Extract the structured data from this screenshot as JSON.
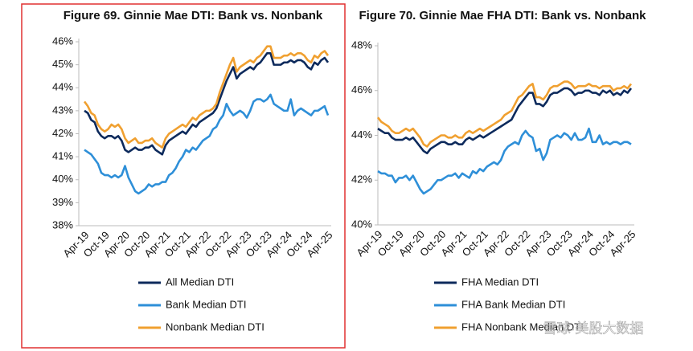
{
  "chart_data": [
    {
      "type": "line",
      "title": "Figure 69. Ginnie Mae DTI: Bank vs. Nonbank",
      "categories": [
        "Apr-19",
        null,
        null,
        null,
        null,
        null,
        "Oct-19",
        null,
        null,
        null,
        null,
        null,
        "Apr-20",
        null,
        null,
        null,
        null,
        null,
        "Oct-20",
        null,
        null,
        null,
        null,
        null,
        "Apr-21",
        null,
        null,
        null,
        null,
        null,
        "Oct-21",
        null,
        null,
        null,
        null,
        null,
        "Apr-22",
        null,
        null,
        null,
        null,
        null,
        "Oct-22",
        null,
        null,
        null,
        null,
        null,
        "Apr-23",
        null,
        null,
        null,
        null,
        null,
        "Oct-23",
        null,
        null,
        null,
        null,
        null,
        "Apr-24",
        null,
        null,
        null,
        null,
        null,
        "Oct-24",
        null,
        null,
        null,
        null,
        null,
        "Apr-25"
      ],
      "ylim": [
        38,
        46
      ],
      "yticks": [
        {
          "value": 38,
          "label": "38%"
        },
        {
          "value": 39,
          "label": "39%"
        },
        {
          "value": 40,
          "label": "40%"
        },
        {
          "value": 41,
          "label": "41%"
        },
        {
          "value": 42,
          "label": "42%"
        },
        {
          "value": 43,
          "label": "43%"
        },
        {
          "value": 44,
          "label": "44%"
        },
        {
          "value": 45,
          "label": "45%"
        },
        {
          "value": 46,
          "label": "46%"
        }
      ],
      "series": [
        {
          "name": "All Median DTI",
          "color": "#0d2a5c",
          "values": [
            43.0,
            42.9,
            42.6,
            42.5,
            42.1,
            41.9,
            41.8,
            41.9,
            41.9,
            41.8,
            41.9,
            41.7,
            41.3,
            41.2,
            41.3,
            41.4,
            41.3,
            41.3,
            41.4,
            41.4,
            41.5,
            41.3,
            41.2,
            41.1,
            41.5,
            41.7,
            41.8,
            41.9,
            42.0,
            42.1,
            42.0,
            42.2,
            42.4,
            42.3,
            42.5,
            42.6,
            42.7,
            42.8,
            42.9,
            43.1,
            43.5,
            43.9,
            44.3,
            44.6,
            44.9,
            44.4,
            44.6,
            44.7,
            44.8,
            44.9,
            44.8,
            45.0,
            45.1,
            45.3,
            45.5,
            45.5,
            45.0,
            45.0,
            45.0,
            45.1,
            45.1,
            45.2,
            45.1,
            45.2,
            45.2,
            45.1,
            44.9,
            44.8,
            45.1,
            45.0,
            45.2,
            45.3,
            45.1
          ]
        },
        {
          "name": "Bank Median DTI",
          "color": "#2e8fd8",
          "values": [
            41.3,
            41.2,
            41.1,
            40.9,
            40.7,
            40.3,
            40.2,
            40.2,
            40.1,
            40.2,
            40.1,
            40.2,
            40.6,
            40.1,
            39.8,
            39.5,
            39.4,
            39.5,
            39.6,
            39.8,
            39.7,
            39.8,
            39.8,
            39.9,
            39.9,
            40.2,
            40.3,
            40.5,
            40.8,
            41.0,
            41.3,
            41.2,
            41.4,
            41.3,
            41.5,
            41.7,
            41.8,
            41.9,
            42.2,
            42.3,
            42.6,
            42.8,
            43.3,
            43.0,
            42.8,
            42.9,
            43.0,
            42.9,
            42.7,
            43.0,
            43.4,
            43.5,
            43.5,
            43.4,
            43.5,
            43.7,
            43.3,
            43.2,
            43.1,
            43.0,
            43.0,
            43.5,
            42.8,
            43.0,
            43.1,
            43.0,
            42.9,
            42.8,
            43.0,
            43.0,
            43.1,
            43.2,
            42.8
          ]
        },
        {
          "name": "Nonbank Median DTI",
          "color": "#f0a030",
          "values": [
            43.4,
            43.2,
            42.9,
            42.8,
            42.4,
            42.2,
            42.1,
            42.2,
            42.4,
            42.3,
            42.4,
            42.2,
            41.8,
            41.6,
            41.7,
            41.8,
            41.6,
            41.6,
            41.7,
            41.7,
            41.8,
            41.6,
            41.5,
            41.4,
            41.8,
            42.0,
            42.1,
            42.2,
            42.3,
            42.4,
            42.3,
            42.5,
            42.7,
            42.6,
            42.8,
            42.9,
            43.0,
            43.0,
            43.1,
            43.3,
            43.8,
            44.2,
            44.6,
            45.0,
            45.3,
            44.7,
            44.9,
            45.0,
            45.1,
            45.2,
            45.1,
            45.3,
            45.4,
            45.6,
            45.8,
            45.8,
            45.3,
            45.3,
            45.3,
            45.4,
            45.4,
            45.5,
            45.4,
            45.5,
            45.5,
            45.4,
            45.2,
            45.1,
            45.4,
            45.3,
            45.5,
            45.6,
            45.4
          ]
        }
      ]
    },
    {
      "type": "line",
      "title": "Figure 70. Ginnie Mae FHA DTI: Bank vs. Nonbank",
      "categories": [
        "Apr-19",
        null,
        null,
        null,
        null,
        null,
        "Oct-19",
        null,
        null,
        null,
        null,
        null,
        "Apr-20",
        null,
        null,
        null,
        null,
        null,
        "Oct-20",
        null,
        null,
        null,
        null,
        null,
        "Apr-21",
        null,
        null,
        null,
        null,
        null,
        "Oct-21",
        null,
        null,
        null,
        null,
        null,
        "Apr-22",
        null,
        null,
        null,
        null,
        null,
        "Oct-22",
        null,
        null,
        null,
        null,
        null,
        "Apr-23",
        null,
        null,
        null,
        null,
        null,
        "Oct-23",
        null,
        null,
        null,
        null,
        null,
        "Apr-24",
        null,
        null,
        null,
        null,
        null,
        "Oct-24",
        null,
        null,
        null,
        null,
        null,
        "Apr-25"
      ],
      "ylim": [
        40,
        48
      ],
      "yticks": [
        {
          "value": 40,
          "label": "40%"
        },
        {
          "value": 42,
          "label": "42%"
        },
        {
          "value": 44,
          "label": "44%"
        },
        {
          "value": 46,
          "label": "46%"
        },
        {
          "value": 48,
          "label": "48%"
        }
      ],
      "series": [
        {
          "name": "FHA Median DTI",
          "color": "#0d2a5c",
          "values": [
            44.3,
            44.2,
            44.1,
            44.1,
            43.9,
            43.8,
            43.8,
            43.8,
            43.9,
            43.8,
            43.9,
            43.7,
            43.5,
            43.3,
            43.2,
            43.4,
            43.5,
            43.6,
            43.7,
            43.7,
            43.6,
            43.6,
            43.7,
            43.6,
            43.6,
            43.8,
            43.9,
            43.8,
            43.9,
            44.0,
            43.9,
            44.0,
            44.1,
            44.2,
            44.3,
            44.4,
            44.5,
            44.6,
            44.7,
            45.0,
            45.3,
            45.5,
            45.7,
            45.9,
            45.9,
            45.4,
            45.4,
            45.3,
            45.5,
            45.8,
            45.9,
            45.9,
            46.0,
            46.1,
            46.1,
            46.0,
            45.8,
            45.9,
            45.9,
            46.0,
            46.0,
            45.9,
            45.9,
            45.8,
            46.0,
            45.9,
            46.0,
            45.8,
            45.9,
            45.8,
            46.0,
            45.9,
            46.1
          ]
        },
        {
          "name": "FHA Bank Median DTI",
          "color": "#2e8fd8",
          "values": [
            42.4,
            42.3,
            42.3,
            42.2,
            42.2,
            41.9,
            42.1,
            42.1,
            42.2,
            42.0,
            42.2,
            41.9,
            41.6,
            41.4,
            41.5,
            41.6,
            41.8,
            42.0,
            42.0,
            42.1,
            42.2,
            42.2,
            42.3,
            42.1,
            42.3,
            42.2,
            42.1,
            42.4,
            42.3,
            42.5,
            42.4,
            42.6,
            42.7,
            42.8,
            42.7,
            42.9,
            43.3,
            43.5,
            43.6,
            43.7,
            43.6,
            44.0,
            44.2,
            44.0,
            43.9,
            43.3,
            43.4,
            42.9,
            43.2,
            43.8,
            43.9,
            44.0,
            43.9,
            44.1,
            44.0,
            43.8,
            44.1,
            43.8,
            43.8,
            43.9,
            44.3,
            43.7,
            43.7,
            44.0,
            43.6,
            43.7,
            43.6,
            43.7,
            43.7,
            43.6,
            43.7,
            43.7,
            43.6
          ]
        },
        {
          "name": "FHA Nonbank Median DTI",
          "color": "#f0a030",
          "values": [
            44.8,
            44.6,
            44.5,
            44.4,
            44.2,
            44.1,
            44.1,
            44.2,
            44.3,
            44.2,
            44.3,
            44.1,
            43.9,
            43.6,
            43.5,
            43.7,
            43.8,
            43.9,
            44.0,
            44.0,
            43.9,
            43.9,
            44.0,
            43.9,
            43.9,
            44.1,
            44.2,
            44.1,
            44.2,
            44.3,
            44.2,
            44.3,
            44.4,
            44.5,
            44.6,
            44.7,
            44.9,
            45.0,
            45.1,
            45.4,
            45.7,
            45.8,
            46.0,
            46.2,
            46.3,
            45.7,
            45.7,
            45.6,
            45.8,
            46.1,
            46.2,
            46.2,
            46.3,
            46.4,
            46.4,
            46.3,
            46.1,
            46.2,
            46.2,
            46.2,
            46.3,
            46.2,
            46.2,
            46.1,
            46.2,
            46.2,
            46.2,
            46.0,
            46.1,
            46.1,
            46.2,
            46.1,
            46.3
          ]
        }
      ]
    }
  ],
  "watermark": "雪球·美股大数据"
}
